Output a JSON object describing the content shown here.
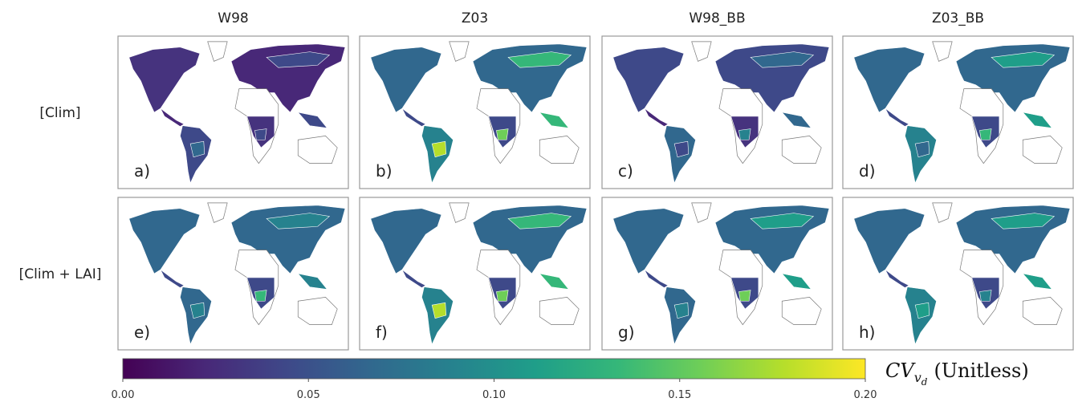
{
  "column_titles": [
    "W98",
    "Z03",
    "W98_BB",
    "Z03_BB"
  ],
  "row_labels": [
    "[Clim]",
    "[Clim + LAI]"
  ],
  "panels": [
    [
      "a)",
      "b)",
      "c)",
      "d)"
    ],
    [
      "e)",
      "f)",
      "g)",
      "h)"
    ]
  ],
  "colorbar": {
    "lim": [
      0,
      0.2
    ],
    "ticks": [
      {
        "value": 0,
        "label": "0.00"
      },
      {
        "value": 0.05,
        "label": "0.05"
      },
      {
        "value": 0.1,
        "label": "0.10"
      },
      {
        "value": 0.15,
        "label": "0.15"
      },
      {
        "value": 0.2,
        "label": "0.20"
      }
    ],
    "colormap": [
      "#440154",
      "#482878",
      "#3e4989",
      "#31688e",
      "#26828e",
      "#1f9e89",
      "#35b779",
      "#6ece58",
      "#b5de2b",
      "#fde725"
    ],
    "label": {
      "symbol": "CV",
      "subscript": "v",
      "subsubscript": "d",
      "unit": "(Unitless)"
    }
  }
}
